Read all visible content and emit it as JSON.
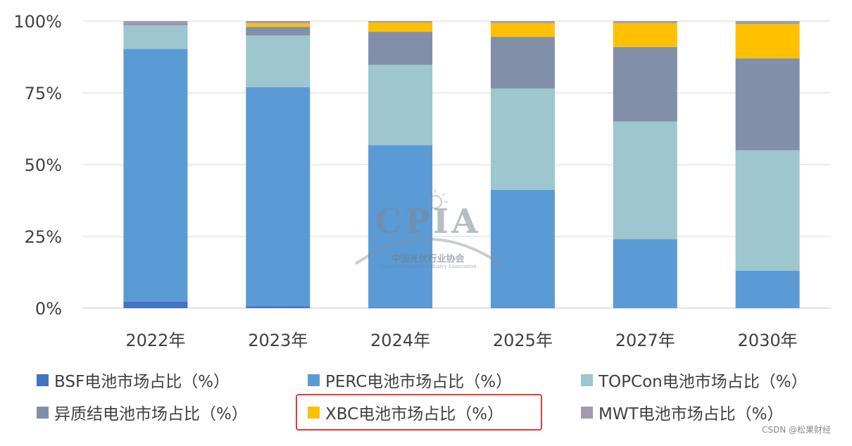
{
  "chart_data": {
    "type": "bar",
    "stacked": true,
    "categories": [
      "2022年",
      "2023年",
      "2024年",
      "2025年",
      "2027年",
      "2030年"
    ],
    "y_ticks": [
      "0%",
      "25%",
      "50%",
      "75%",
      "100%"
    ],
    "ylim": [
      0,
      100
    ],
    "grid": true,
    "legend_position": "bottom",
    "series": [
      {
        "name": "BSF电池市场占比（%）",
        "color": "#4472C4",
        "values": [
          2.3,
          0.7,
          0.3,
          0.2,
          0,
          0
        ]
      },
      {
        "name": "PERC电池市场占比（%）",
        "color": "#5B9BD5",
        "values": [
          88.0,
          76.3,
          56.5,
          41.0,
          24.0,
          13.0
        ]
      },
      {
        "name": "TOPCon电池市场占比（%）",
        "color": "#9DC6CE",
        "values": [
          8.3,
          18.0,
          28.0,
          35.3,
          41.0,
          42.0
        ]
      },
      {
        "name": "异质结电池市场占比（%）",
        "color": "#8190A8",
        "values": [
          0.6,
          3.0,
          11.5,
          18.0,
          26.0,
          32.0
        ]
      },
      {
        "name": "XBC电池市场占比（%）",
        "color": "#FFC000",
        "values": [
          0,
          1.2,
          3.2,
          4.8,
          8.3,
          12.0
        ]
      },
      {
        "name": "MWT电池市场占比（%）",
        "color": "#A39AAD",
        "values": [
          0.8,
          0.8,
          0.5,
          0.7,
          0.7,
          1.0
        ]
      }
    ],
    "highlighted_series": "XBC电池市场占比（%）"
  },
  "watermark": {
    "title": "CPIA",
    "subtitle": "中国光伏行业协会",
    "subtitle_en": "China Photovoltaic Industry Association"
  },
  "credit": "CSDN @松果财经",
  "colors": {
    "grid": "#D9D9D9",
    "axis_text": "#404040",
    "highlight_box": "#E53935"
  }
}
